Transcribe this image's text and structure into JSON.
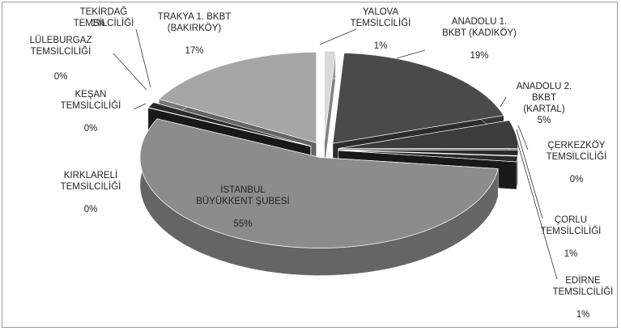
{
  "chart_data": {
    "type": "pie3d",
    "categories": [
      "YALOVA\nTEMSİLCİLİĞİ",
      "ANADOLU 1.\nBKBT (KADIKÖY)",
      "ANADOLU 2. BKBT\n(KARTAL)",
      "ÇERKEZKÖY\nTEMSİLCİLİĞİ",
      "ÇORLU\nTEMSİLCİLİĞİ",
      "EDİRNE\nTEMSİLCİLİĞİ",
      "İSTANBUL\nBÜYÜKKENT ŞUBESİ",
      "KIRKLARELİ\nTEMSİLCİLİĞİ",
      "KEŞAN\nTEMSİLCİLİĞİ",
      "LÜLEBURGAZ\nTEMSİLCİLİĞİ",
      "TEKİRDAĞ\nTEMSİLCİLİĞİ",
      "TRAKYA 1. BKBT\n(BAKIRKÖY)"
    ],
    "values": [
      1,
      19,
      5,
      0,
      1,
      1,
      55,
      0,
      0,
      0,
      1,
      17
    ],
    "value_labels": [
      "1%",
      "19%",
      "5%",
      "0%",
      "1%",
      "1%",
      "55%",
      "0%",
      "0%",
      "0%",
      "1%",
      "17%"
    ],
    "colors": [
      "#d8d8d8",
      "#4a4a4a",
      "#3c3c3c",
      "#2a2a2a",
      "#2a2a2a",
      "#2a2a2a",
      "#8c8c8c",
      "#2a2a2a",
      "#2a2a2a",
      "#2a2a2a",
      "#2a2a2a",
      "#a6a6a6"
    ]
  }
}
